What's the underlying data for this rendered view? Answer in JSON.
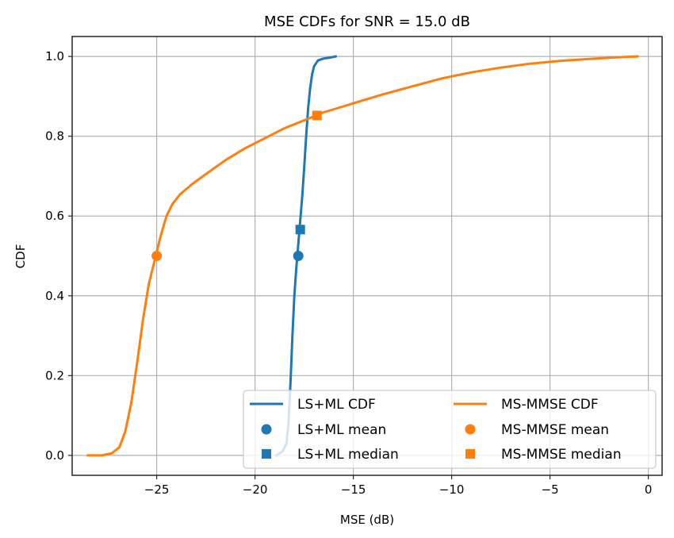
{
  "chart_data": {
    "type": "line",
    "title": "MSE CDFs for SNR = 15.0 dB",
    "xlabel": "MSE (dB)",
    "ylabel": "CDF",
    "xlim": [
      -29.3,
      0.7
    ],
    "ylim": [
      -0.05,
      1.05
    ],
    "grid": true,
    "legend_position": "bottom-right",
    "legend_columns": 2,
    "xticks": [
      -25,
      -20,
      -15,
      -10,
      -5,
      0
    ],
    "xtick_labels": [
      "−25",
      "−20",
      "−15",
      "−10",
      "−5",
      "0"
    ],
    "yticks": [
      0.0,
      0.2,
      0.4,
      0.6,
      0.8,
      1.0
    ],
    "ytick_labels": [
      "0.0",
      "0.2",
      "0.4",
      "0.6",
      "0.8",
      "1.0"
    ],
    "series": [
      {
        "name": "LS+ML CDF",
        "kind": "line",
        "color": "#1f77b4",
        "x": [
          -18.9,
          -18.6,
          -18.4,
          -18.3,
          -18.2,
          -18.1,
          -18.0,
          -17.9,
          -17.8,
          -17.7,
          -17.6,
          -17.5,
          -17.4,
          -17.3,
          -17.2,
          -17.1,
          -17.0,
          -16.8,
          -16.5,
          -16.2,
          -15.9
        ],
        "y": [
          0.0,
          0.01,
          0.03,
          0.08,
          0.18,
          0.3,
          0.4,
          0.47,
          0.53,
          0.59,
          0.65,
          0.72,
          0.8,
          0.87,
          0.92,
          0.955,
          0.975,
          0.99,
          0.995,
          0.997,
          1.0
        ]
      },
      {
        "name": "MS-MMSE CDF",
        "kind": "line",
        "color": "#ff7f0e",
        "x": [
          -28.5,
          -27.8,
          -27.3,
          -26.9,
          -26.6,
          -26.3,
          -26.0,
          -25.7,
          -25.4,
          -25.1,
          -24.8,
          -24.5,
          -24.2,
          -23.8,
          -23.2,
          -22.5,
          -21.5,
          -20.5,
          -19.5,
          -18.5,
          -17.5,
          -16.5,
          -15.5,
          -14.5,
          -13.5,
          -12.0,
          -10.5,
          -9.0,
          -7.5,
          -6.0,
          -4.5,
          -3.0,
          -1.5,
          -0.55
        ],
        "y": [
          0.0,
          0.0,
          0.005,
          0.02,
          0.06,
          0.13,
          0.23,
          0.34,
          0.43,
          0.49,
          0.55,
          0.6,
          0.63,
          0.655,
          0.68,
          0.705,
          0.74,
          0.77,
          0.795,
          0.82,
          0.84,
          0.86,
          0.875,
          0.89,
          0.905,
          0.925,
          0.945,
          0.96,
          0.972,
          0.982,
          0.989,
          0.994,
          0.998,
          1.0
        ]
      },
      {
        "name": "LS+ML mean",
        "kind": "marker",
        "marker": "circle",
        "color": "#1f77b4",
        "x": [
          -17.8
        ],
        "y": [
          0.5
        ]
      },
      {
        "name": "LS+ML median",
        "kind": "marker",
        "marker": "square",
        "color": "#1f77b4",
        "x": [
          -17.7
        ],
        "y": [
          0.566
        ]
      },
      {
        "name": "MS-MMSE mean",
        "kind": "marker",
        "marker": "circle",
        "color": "#ff7f0e",
        "x": [
          -25.0
        ],
        "y": [
          0.5
        ]
      },
      {
        "name": "MS-MMSE median",
        "kind": "marker",
        "marker": "square",
        "color": "#ff7f0e",
        "x": [
          -16.85
        ],
        "y": [
          0.852
        ]
      }
    ],
    "legend": [
      {
        "label": "LS+ML CDF",
        "series": 0
      },
      {
        "label": "LS+ML mean",
        "series": 2
      },
      {
        "label": "LS+ML median",
        "series": 3
      },
      {
        "label": "MS-MMSE CDF",
        "series": 1
      },
      {
        "label": "MS-MMSE mean",
        "series": 4
      },
      {
        "label": "MS-MMSE median",
        "series": 5
      }
    ]
  }
}
